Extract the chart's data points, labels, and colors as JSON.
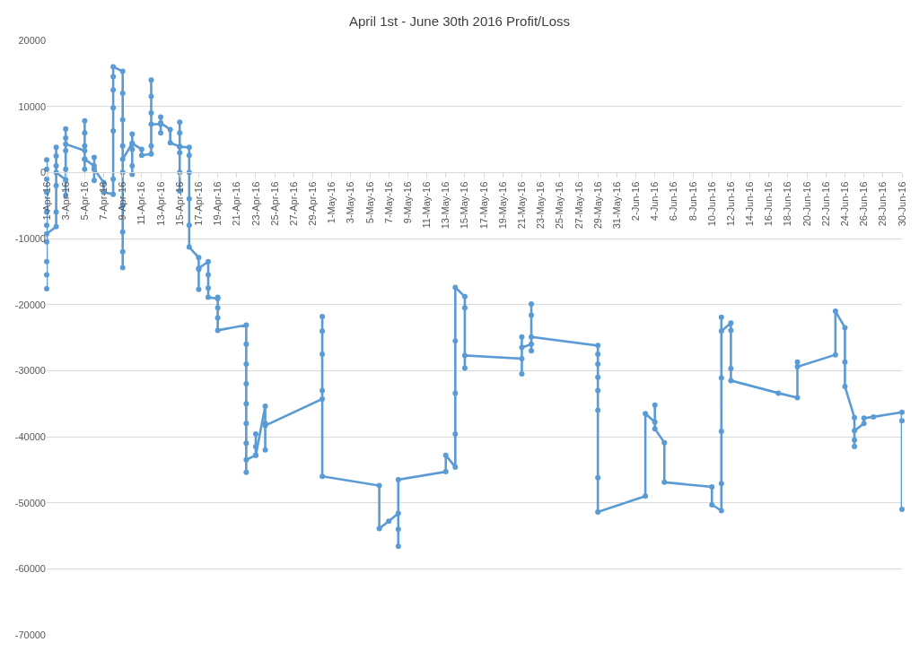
{
  "chart_data": {
    "type": "line",
    "title": "April 1st - June 30th 2016 Profit/Loss",
    "x": [
      "2016-04-01",
      "2016-04-01",
      "2016-04-01",
      "2016-04-01",
      "2016-04-01",
      "2016-04-01",
      "2016-04-01",
      "2016-04-01",
      "2016-04-01",
      "2016-04-01",
      "2016-04-01",
      "2016-04-02",
      "2016-04-02",
      "2016-04-02",
      "2016-04-02",
      "2016-04-02",
      "2016-04-02",
      "2016-04-02",
      "2016-04-03",
      "2016-04-03",
      "2016-04-03",
      "2016-04-03",
      "2016-04-03",
      "2016-04-03",
      "2016-04-03",
      "2016-04-05",
      "2016-04-05",
      "2016-04-05",
      "2016-04-05",
      "2016-04-05",
      "2016-04-05",
      "2016-04-05",
      "2016-04-06",
      "2016-04-06",
      "2016-04-06",
      "2016-04-06",
      "2016-04-07",
      "2016-04-07",
      "2016-04-08",
      "2016-04-08",
      "2016-04-08",
      "2016-04-08",
      "2016-04-08",
      "2016-04-08",
      "2016-04-08",
      "2016-04-09",
      "2016-04-09",
      "2016-04-09",
      "2016-04-09",
      "2016-04-09",
      "2016-04-09",
      "2016-04-09",
      "2016-04-09",
      "2016-04-09",
      "2016-04-09",
      "2016-04-10",
      "2016-04-10",
      "2016-04-10",
      "2016-04-10",
      "2016-04-10",
      "2016-04-10",
      "2016-04-11",
      "2016-04-11",
      "2016-04-12",
      "2016-04-12",
      "2016-04-12",
      "2016-04-12",
      "2016-04-12",
      "2016-04-12",
      "2016-04-13",
      "2016-04-13",
      "2016-04-13",
      "2016-04-13",
      "2016-04-14",
      "2016-04-14",
      "2016-04-15",
      "2016-04-15",
      "2016-04-15",
      "2016-04-15",
      "2016-04-15",
      "2016-04-15",
      "2016-04-15",
      "2016-04-16",
      "2016-04-16",
      "2016-04-16",
      "2016-04-16",
      "2016-04-16",
      "2016-04-16",
      "2016-04-17",
      "2016-04-17",
      "2016-04-17",
      "2016-04-17",
      "2016-04-18",
      "2016-04-18",
      "2016-04-18",
      "2016-04-18",
      "2016-04-19",
      "2016-04-19",
      "2016-04-19",
      "2016-04-19",
      "2016-04-19",
      "2016-04-22",
      "2016-04-22",
      "2016-04-22",
      "2016-04-22",
      "2016-04-22",
      "2016-04-22",
      "2016-04-22",
      "2016-04-22",
      "2016-04-22",
      "2016-04-23",
      "2016-04-23",
      "2016-04-23",
      "2016-04-23",
      "2016-04-24",
      "2016-04-24",
      "2016-04-24",
      "2016-04-24",
      "2016-04-30",
      "2016-04-30",
      "2016-04-30",
      "2016-04-30",
      "2016-04-30",
      "2016-04-30",
      "2016-05-06",
      "2016-05-06",
      "2016-05-07",
      "2016-05-08",
      "2016-05-08",
      "2016-05-08",
      "2016-05-08",
      "2016-05-13",
      "2016-05-13",
      "2016-05-14",
      "2016-05-14",
      "2016-05-14",
      "2016-05-14",
      "2016-05-14",
      "2016-05-15",
      "2016-05-15",
      "2016-05-15",
      "2016-05-15",
      "2016-05-21",
      "2016-05-21",
      "2016-05-21",
      "2016-05-21",
      "2016-05-22",
      "2016-05-22",
      "2016-05-22",
      "2016-05-22",
      "2016-05-22",
      "2016-05-29",
      "2016-05-29",
      "2016-05-29",
      "2016-05-29",
      "2016-05-29",
      "2016-05-29",
      "2016-05-29",
      "2016-05-29",
      "2016-06-03",
      "2016-06-03",
      "2016-06-04",
      "2016-06-04",
      "2016-06-04",
      "2016-06-05",
      "2016-06-05",
      "2016-06-10",
      "2016-06-10",
      "2016-06-11",
      "2016-06-11",
      "2016-06-11",
      "2016-06-11",
      "2016-06-11",
      "2016-06-11",
      "2016-06-12",
      "2016-06-12",
      "2016-06-12",
      "2016-06-12",
      "2016-06-17",
      "2016-06-19",
      "2016-06-19",
      "2016-06-19",
      "2016-06-23",
      "2016-06-23",
      "2016-06-24",
      "2016-06-24",
      "2016-06-24",
      "2016-06-25",
      "2016-06-25",
      "2016-06-25",
      "2016-06-25",
      "2016-06-26",
      "2016-06-26",
      "2016-06-27",
      "2016-06-30",
      "2016-06-30",
      "2016-06-30"
    ],
    "series": [
      {
        "color": "#5b9bd5",
        "values": [
          1900,
          500,
          -1000,
          -3000,
          -6000,
          -8000,
          -10500,
          -13500,
          -15500,
          -17600,
          -9300,
          -8200,
          -6000,
          -2000,
          1000,
          2500,
          3800,
          0,
          -1100,
          -3500,
          500,
          3300,
          5200,
          6600,
          4300,
          3300,
          500,
          2000,
          4000,
          6000,
          7800,
          2000,
          1000,
          -1200,
          2300,
          500,
          -1500,
          -3000,
          -3300,
          -1000,
          6300,
          9800,
          12500,
          14500,
          16000,
          15300,
          12000,
          8000,
          4000,
          0,
          -5000,
          -9000,
          -12000,
          -14400,
          2000,
          4400,
          -300,
          1000,
          3500,
          5800,
          4400,
          3500,
          2600,
          2800,
          4000,
          9000,
          11500,
          14000,
          7300,
          7300,
          6000,
          8400,
          7500,
          6500,
          4500,
          3900,
          -2800,
          0,
          3000,
          6000,
          7600,
          3900,
          3800,
          2600,
          0,
          -4000,
          -8000,
          -11300,
          -12900,
          -14700,
          -17700,
          -14500,
          -13500,
          -15500,
          -17500,
          -18900,
          -19100,
          -18900,
          -20500,
          -22000,
          -23900,
          -23100,
          -26000,
          -29000,
          -32000,
          -35000,
          -38000,
          -41000,
          -45400,
          -43500,
          -42800,
          -39600,
          -41500,
          -42800,
          -35400,
          -38000,
          -42000,
          -38300,
          -34300,
          -33000,
          -27500,
          -24000,
          -21800,
          -46000,
          -47400,
          -53900,
          -52800,
          -51600,
          -56600,
          -54000,
          -46500,
          -45300,
          -42800,
          -44600,
          -39600,
          -33400,
          -25500,
          -17400,
          -18800,
          -20500,
          -29600,
          -27700,
          -28200,
          -30500,
          -24900,
          -26500,
          -26000,
          -19900,
          -21600,
          -27000,
          -24900,
          -26200,
          -27500,
          -29000,
          -31000,
          -33000,
          -36000,
          -46200,
          -51400,
          -49000,
          -36500,
          -37800,
          -35200,
          -38800,
          -40900,
          -46900,
          -47600,
          -50300,
          -51200,
          -47100,
          -39200,
          -31100,
          -21900,
          -24000,
          -22800,
          -23900,
          -29700,
          -31500,
          -33400,
          -34100,
          -28700,
          -29400,
          -27600,
          -21000,
          -23500,
          -28700,
          -32400,
          -37100,
          -40500,
          -41500,
          -39100,
          -38000,
          -37200,
          -37000,
          -36300,
          -37600,
          -51000
        ]
      }
    ],
    "xlim": [
      "2016-04-01",
      "2016-06-30"
    ],
    "xticks": [
      {
        "value": "2016-04-01",
        "label": "1-Apr-16"
      },
      {
        "value": "2016-04-03",
        "label": "3-Apr-16"
      },
      {
        "value": "2016-04-05",
        "label": "5-Apr-16"
      },
      {
        "value": "2016-04-07",
        "label": "7-Apr-16"
      },
      {
        "value": "2016-04-09",
        "label": "9-Apr-16"
      },
      {
        "value": "2016-04-11",
        "label": "11-Apr-16"
      },
      {
        "value": "2016-04-13",
        "label": "13-Apr-16"
      },
      {
        "value": "2016-04-15",
        "label": "15-Apr-16"
      },
      {
        "value": "2016-04-17",
        "label": "17-Apr-16"
      },
      {
        "value": "2016-04-19",
        "label": "19-Apr-16"
      },
      {
        "value": "2016-04-21",
        "label": "21-Apr-16"
      },
      {
        "value": "2016-04-23",
        "label": "23-Apr-16"
      },
      {
        "value": "2016-04-25",
        "label": "25-Apr-16"
      },
      {
        "value": "2016-04-27",
        "label": "27-Apr-16"
      },
      {
        "value": "2016-04-29",
        "label": "29-Apr-16"
      },
      {
        "value": "2016-05-01",
        "label": "1-May-16"
      },
      {
        "value": "2016-05-03",
        "label": "3-May-16"
      },
      {
        "value": "2016-05-05",
        "label": "5-May-16"
      },
      {
        "value": "2016-05-07",
        "label": "7-May-16"
      },
      {
        "value": "2016-05-09",
        "label": "9-May-16"
      },
      {
        "value": "2016-05-11",
        "label": "11-May-16"
      },
      {
        "value": "2016-05-13",
        "label": "13-May-16"
      },
      {
        "value": "2016-05-15",
        "label": "15-May-16"
      },
      {
        "value": "2016-05-17",
        "label": "17-May-16"
      },
      {
        "value": "2016-05-19",
        "label": "19-May-16"
      },
      {
        "value": "2016-05-21",
        "label": "21-May-16"
      },
      {
        "value": "2016-05-23",
        "label": "23-May-16"
      },
      {
        "value": "2016-05-25",
        "label": "25-May-16"
      },
      {
        "value": "2016-05-27",
        "label": "27-May-16"
      },
      {
        "value": "2016-05-29",
        "label": "29-May-16"
      },
      {
        "value": "2016-05-31",
        "label": "31-May-16"
      },
      {
        "value": "2016-06-02",
        "label": "2-Jun-16"
      },
      {
        "value": "2016-06-04",
        "label": "4-Jun-16"
      },
      {
        "value": "2016-06-06",
        "label": "6-Jun-16"
      },
      {
        "value": "2016-06-08",
        "label": "8-Jun-16"
      },
      {
        "value": "2016-06-10",
        "label": "10-Jun-16"
      },
      {
        "value": "2016-06-12",
        "label": "12-Jun-16"
      },
      {
        "value": "2016-06-14",
        "label": "14-Jun-16"
      },
      {
        "value": "2016-06-16",
        "label": "16-Jun-16"
      },
      {
        "value": "2016-06-18",
        "label": "18-Jun-16"
      },
      {
        "value": "2016-06-20",
        "label": "20-Jun-16"
      },
      {
        "value": "2016-06-22",
        "label": "22-Jun-16"
      },
      {
        "value": "2016-06-24",
        "label": "24-Jun-16"
      },
      {
        "value": "2016-06-26",
        "label": "26-Jun-16"
      },
      {
        "value": "2016-06-28",
        "label": "28-Jun-16"
      },
      {
        "value": "2016-06-30",
        "label": "30-Jun-16"
      }
    ],
    "ylim": [
      -70000,
      20000
    ],
    "yticks": [
      -70000,
      -60000,
      -50000,
      -40000,
      -30000,
      -20000,
      -10000,
      0,
      10000,
      20000
    ],
    "grid": "y",
    "marker": "circle",
    "line_style": "solid"
  }
}
